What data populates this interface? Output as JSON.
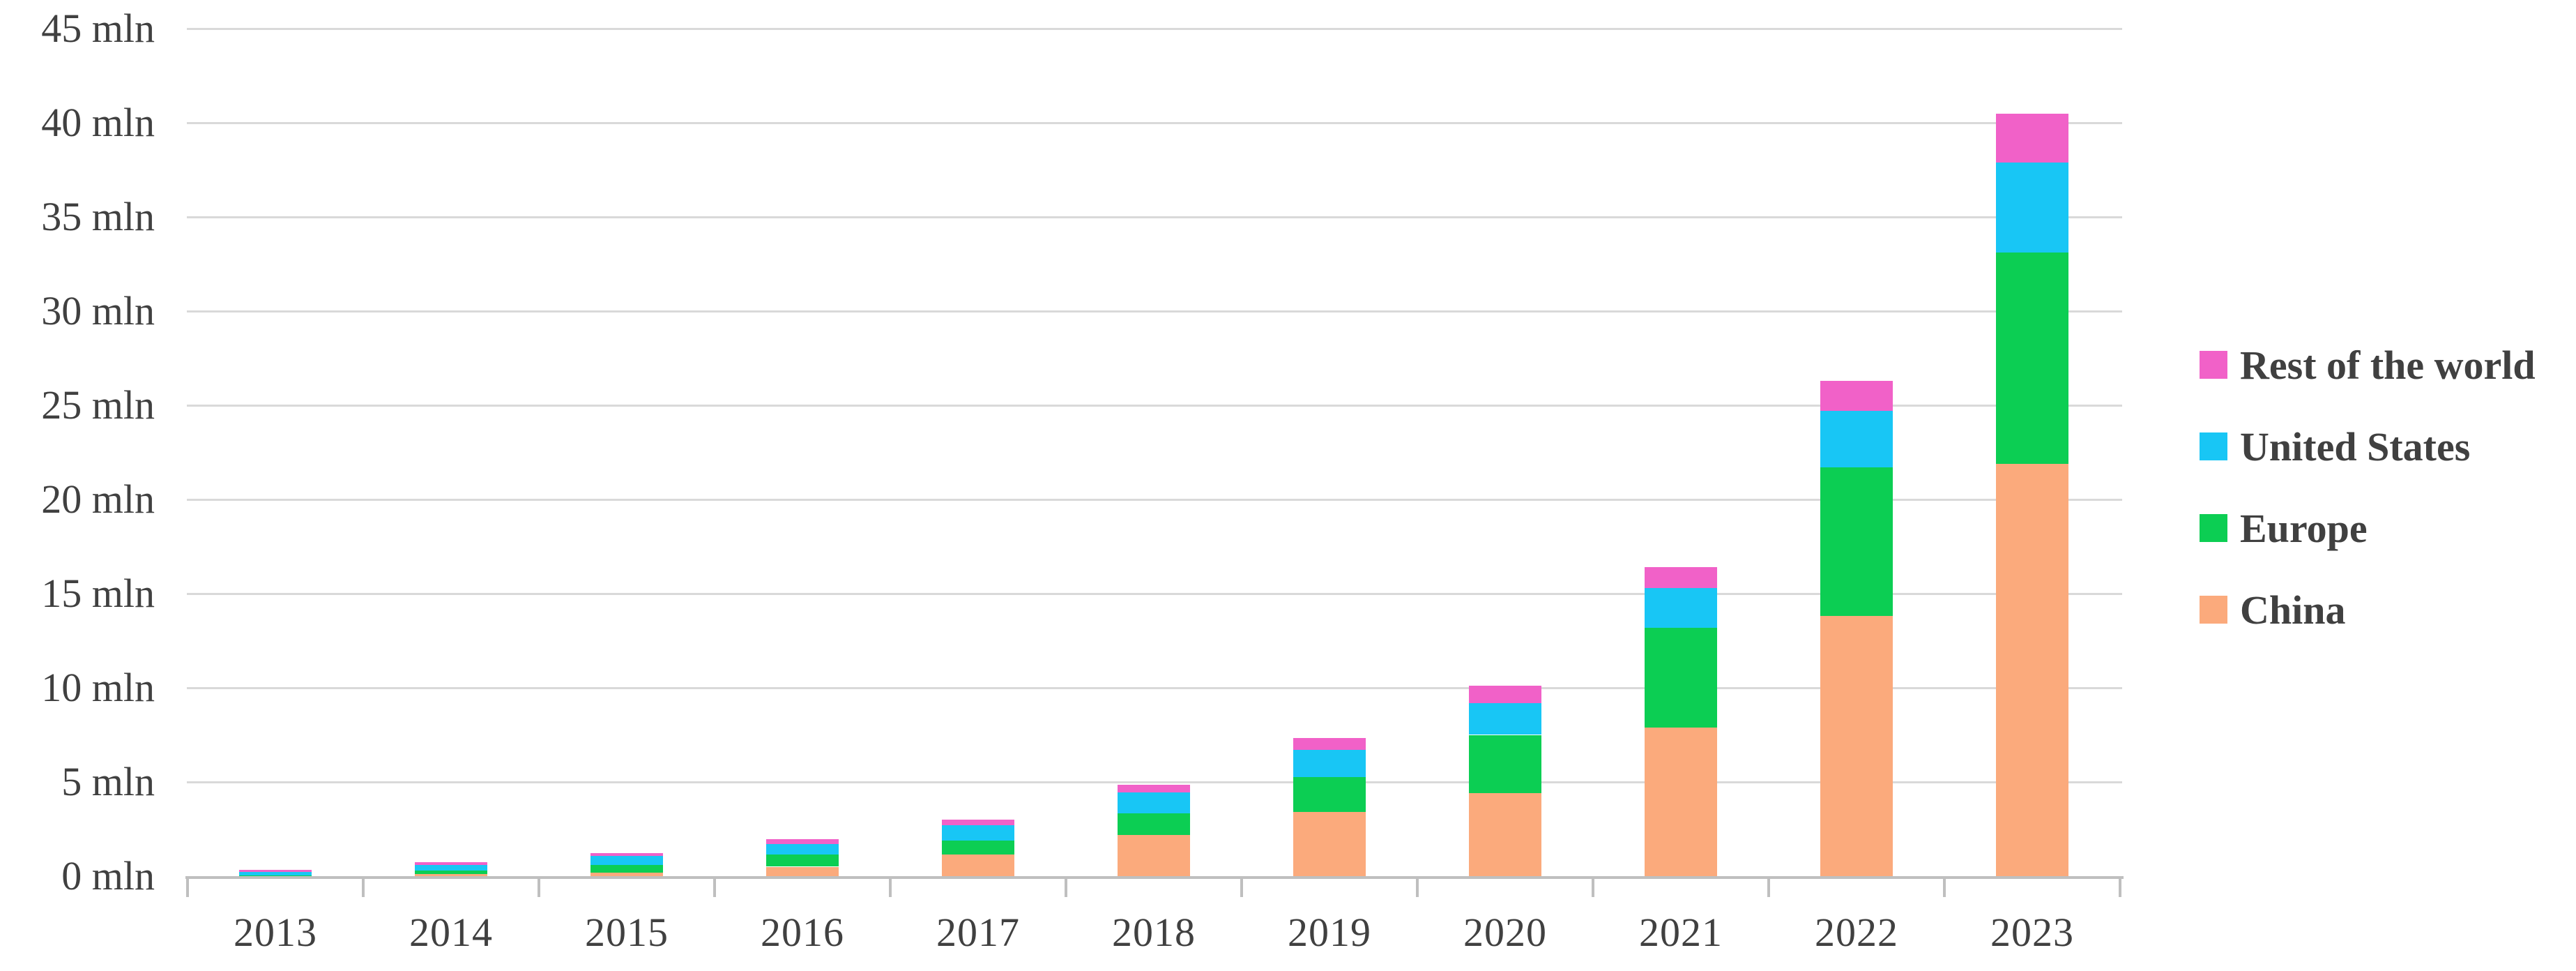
{
  "chart_data": {
    "type": "bar",
    "stacked": true,
    "title": "",
    "xlabel": "",
    "ylabel": "",
    "unit": "mln",
    "categories": [
      "2013",
      "2014",
      "2015",
      "2016",
      "2017",
      "2018",
      "2019",
      "2020",
      "2021",
      "2022",
      "2023"
    ],
    "series": [
      {
        "name": "China",
        "color": "#FBAA7C",
        "values": [
          0.02,
          0.1,
          0.2,
          0.5,
          1.15,
          2.2,
          3.4,
          4.4,
          7.9,
          13.8,
          21.9
        ]
      },
      {
        "name": "Europe",
        "color": "#0CCE53",
        "values": [
          0.03,
          0.2,
          0.38,
          0.65,
          0.75,
          1.15,
          1.85,
          3.1,
          5.3,
          7.9,
          11.2
        ]
      },
      {
        "name": "United States",
        "color": "#18C6F5",
        "values": [
          0.16,
          0.3,
          0.5,
          0.55,
          0.8,
          1.1,
          1.45,
          1.7,
          2.1,
          3.0,
          4.8
        ]
      },
      {
        "name": "Rest of the world",
        "color": "#F161C8",
        "values": [
          0.14,
          0.13,
          0.15,
          0.25,
          0.3,
          0.4,
          0.65,
          0.9,
          1.1,
          1.6,
          2.6
        ]
      }
    ],
    "y_axis": {
      "min": 0,
      "max": 45,
      "step": 5,
      "tick_labels": [
        "0 mln",
        "5 mln",
        "10 mln",
        "15 mln",
        "20 mln",
        "25 mln",
        "30 mln",
        "35 mln",
        "40 mln",
        "45 mln"
      ]
    },
    "x_axis": {
      "tick_labels": [
        "2013",
        "2014",
        "2015",
        "2016",
        "2017",
        "2018",
        "2019",
        "2020",
        "2021",
        "2022",
        "2023"
      ]
    },
    "legend": {
      "position": "right",
      "items": [
        "Rest of the world",
        "United States",
        "Europe",
        "China"
      ]
    },
    "grid": true
  },
  "colors": {
    "grid": "#D9D9D9",
    "axis": "#BFBFBF",
    "text": "#404040",
    "background": "#FFFFFF"
  }
}
